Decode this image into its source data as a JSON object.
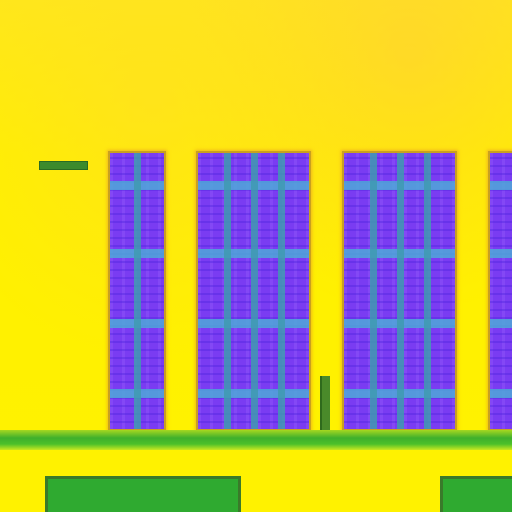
{
  "scene": {
    "description_free": true
  },
  "colors": {
    "background": "#ffee00",
    "panel": "#7a3cf2",
    "panel_band": "#4fa8d8",
    "ground": "#3fb02c",
    "dark_green": "#3c8a2c"
  },
  "panels": [
    {
      "id": "panel-1"
    },
    {
      "id": "panel-2"
    },
    {
      "id": "panel-3"
    },
    {
      "id": "panel-4"
    }
  ]
}
